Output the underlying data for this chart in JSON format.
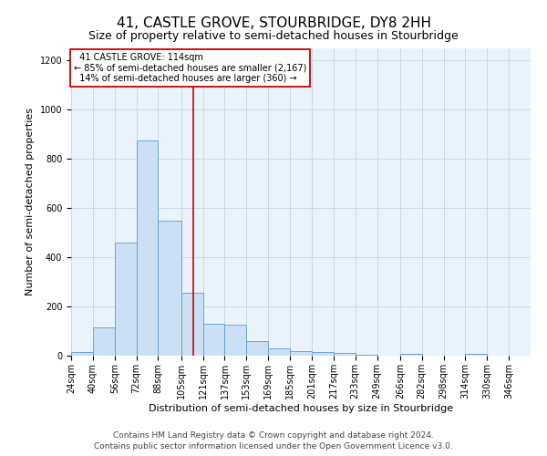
{
  "title": "41, CASTLE GROVE, STOURBRIDGE, DY8 2HH",
  "subtitle": "Size of property relative to semi-detached houses in Stourbridge",
  "xlabel": "Distribution of semi-detached houses by size in Stourbridge",
  "ylabel": "Number of semi-detached properties",
  "footer_line1": "Contains HM Land Registry data © Crown copyright and database right 2024.",
  "footer_line2": "Contains public sector information licensed under the Open Government Licence v3.0.",
  "bin_labels": [
    "24sqm",
    "40sqm",
    "56sqm",
    "72sqm",
    "88sqm",
    "105sqm",
    "121sqm",
    "137sqm",
    "153sqm",
    "169sqm",
    "185sqm",
    "201sqm",
    "217sqm",
    "233sqm",
    "249sqm",
    "266sqm",
    "282sqm",
    "298sqm",
    "314sqm",
    "330sqm",
    "346sqm"
  ],
  "bin_edges": [
    24,
    40,
    56,
    72,
    88,
    105,
    121,
    137,
    153,
    169,
    185,
    201,
    217,
    233,
    249,
    266,
    282,
    298,
    314,
    330,
    346,
    362
  ],
  "bar_values": [
    15,
    115,
    460,
    875,
    550,
    255,
    130,
    125,
    60,
    30,
    20,
    15,
    10,
    5,
    1,
    8,
    1,
    0,
    7,
    0,
    1
  ],
  "bar_color": "#cce0f5",
  "bar_edge_color": "#5b9bd5",
  "property_size": 114,
  "property_label": "41 CASTLE GROVE: 114sqm",
  "pct_smaller": 85,
  "count_smaller": 2167,
  "pct_larger": 14,
  "count_larger": 360,
  "vline_color": "#cc0000",
  "annotation_box_color": "#ffffff",
  "annotation_box_edge": "#cc0000",
  "ylim": [
    0,
    1250
  ],
  "yticks": [
    0,
    200,
    400,
    600,
    800,
    1000,
    1200
  ],
  "grid_color": "#c8d8e8",
  "bg_color": "#eaf3fb",
  "title_fontsize": 11,
  "subtitle_fontsize": 9,
  "axis_label_fontsize": 8,
  "tick_fontsize": 7,
  "annotation_fontsize": 7,
  "footer_fontsize": 6.5
}
